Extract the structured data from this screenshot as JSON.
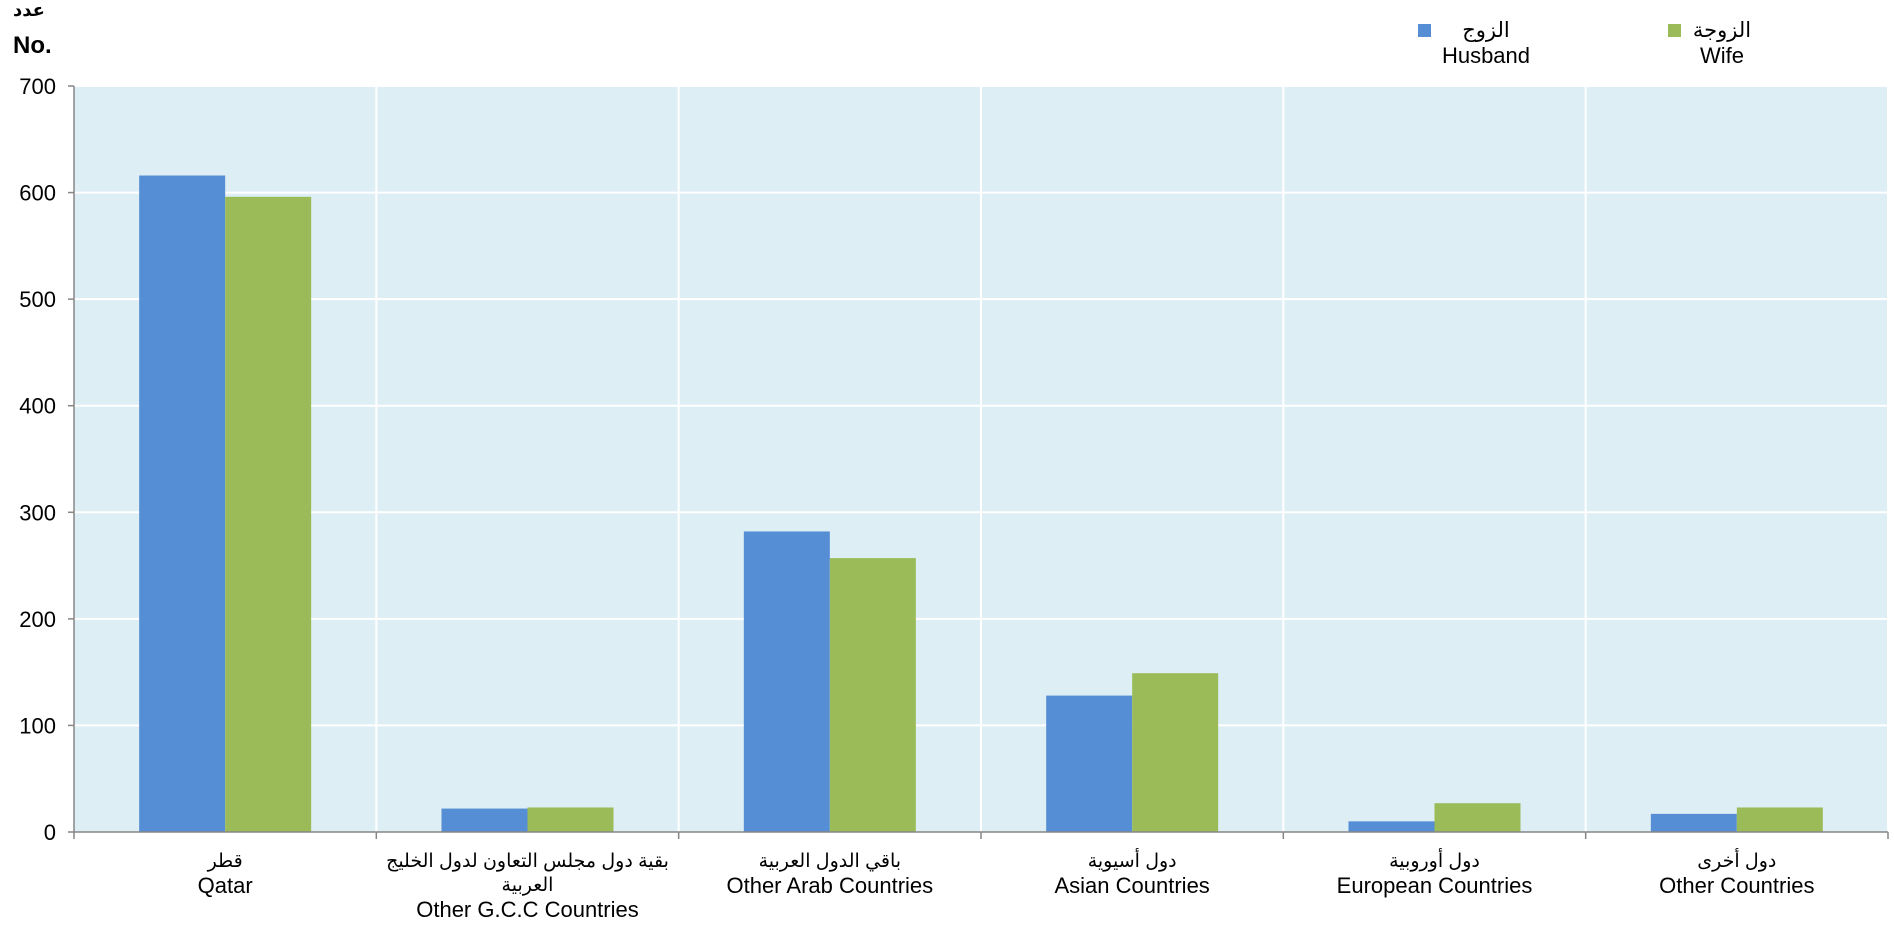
{
  "chart_data": {
    "type": "bar",
    "y_unit": {
      "arabic": "عدد",
      "english": "No."
    },
    "categories": [
      {
        "arabic": "قطر",
        "arabic2": "",
        "english": "Qatar"
      },
      {
        "arabic": "بقية دول مجلس التعاون لدول الخليج",
        "arabic2": "العربية",
        "english": "Other G.C.C Countries"
      },
      {
        "arabic": "باقي الدول العربية",
        "arabic2": "",
        "english": "Other Arab Countries"
      },
      {
        "arabic": "دول أسيوية",
        "arabic2": "",
        "english": "Asian Countries"
      },
      {
        "arabic": "دول أوروبية",
        "arabic2": "",
        "english": "European Countries"
      },
      {
        "arabic": "دول أخرى",
        "arabic2": "",
        "english": "Other Countries"
      }
    ],
    "series": [
      {
        "name": "Husband",
        "name_arabic": "الزوج",
        "color": "#558ED5",
        "values": [
          616,
          22,
          282,
          128,
          10,
          17
        ]
      },
      {
        "name": "Wife",
        "name_arabic": "الزوجة",
        "color": "#9BBB59",
        "values": [
          596,
          23,
          257,
          149,
          27,
          23
        ]
      }
    ],
    "ylim": [
      0,
      700
    ],
    "yticks": [
      0,
      100,
      200,
      300,
      400,
      500,
      600,
      700
    ],
    "grid": true,
    "legend_position": "top-right",
    "plot_background": "#DDEEF4"
  }
}
